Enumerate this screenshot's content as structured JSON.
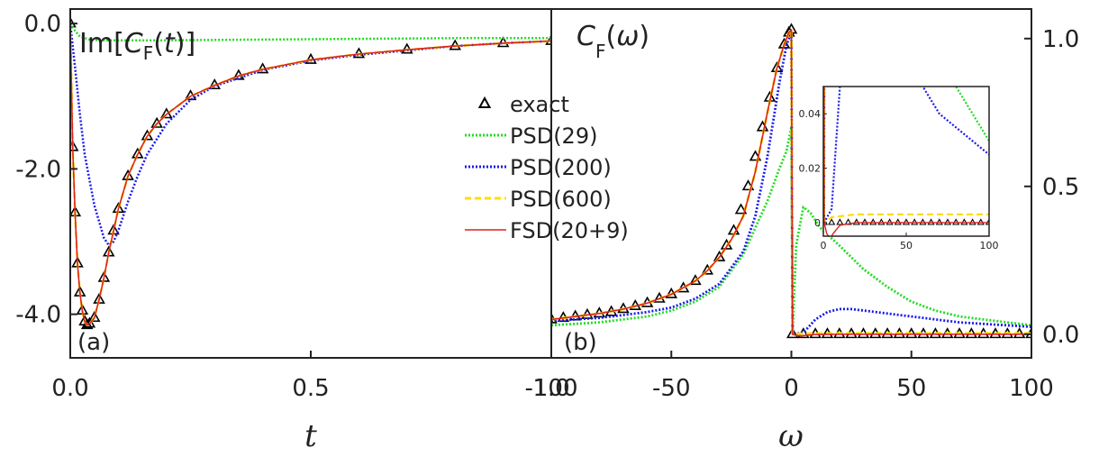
{
  "chart_data": [
    {
      "type": "line",
      "panel_label": "(a)",
      "title": "Im[C_F(t)]",
      "xlabel": "t",
      "ylabel": "",
      "xlim": [
        0.0,
        1.0
      ],
      "ylim": [
        -4.6,
        0.2
      ],
      "x_ticks": [
        "0.0",
        "0.5",
        "1.0"
      ],
      "y_ticks": [
        "0.0",
        "-2.0",
        "-4.0"
      ],
      "series": [
        {
          "name": "exact",
          "style": "triangle-markers",
          "color": "#000000",
          "x": [
            0.0,
            0.005,
            0.01,
            0.015,
            0.02,
            0.025,
            0.03,
            0.035,
            0.04,
            0.05,
            0.06,
            0.07,
            0.08,
            0.09,
            0.1,
            0.12,
            0.14,
            0.16,
            0.18,
            0.2,
            0.25,
            0.3,
            0.35,
            0.4,
            0.5,
            0.6,
            0.7,
            0.8,
            0.9,
            1.0
          ],
          "y": [
            0.0,
            -1.7,
            -2.6,
            -3.3,
            -3.7,
            -3.95,
            -4.1,
            -4.15,
            -4.13,
            -4.05,
            -3.8,
            -3.5,
            -3.15,
            -2.85,
            -2.55,
            -2.1,
            -1.8,
            -1.55,
            -1.38,
            -1.25,
            -1.0,
            -0.85,
            -0.72,
            -0.63,
            -0.5,
            -0.42,
            -0.36,
            -0.31,
            -0.27,
            -0.24
          ]
        },
        {
          "name": "PSD(29)",
          "style": "dotted",
          "color": "#22dd22",
          "x": [
            0.0,
            0.01,
            0.02,
            0.04,
            0.06,
            0.1,
            0.2,
            0.4,
            0.6,
            0.8,
            1.0
          ],
          "y": [
            0.0,
            -0.1,
            -0.18,
            -0.22,
            -0.23,
            -0.23,
            -0.23,
            -0.22,
            -0.21,
            -0.2,
            -0.2
          ]
        },
        {
          "name": "PSD(200)",
          "style": "dotted",
          "color": "#1a1aee",
          "x": [
            0.0,
            0.01,
            0.02,
            0.03,
            0.05,
            0.07,
            0.08,
            0.09,
            0.1,
            0.12,
            0.14,
            0.16,
            0.2,
            0.25,
            0.3,
            0.4,
            0.5,
            0.6,
            0.7,
            0.8,
            0.9,
            1.0
          ],
          "y": [
            0.0,
            -0.6,
            -1.25,
            -1.8,
            -2.5,
            -2.95,
            -3.05,
            -3.0,
            -2.85,
            -2.45,
            -2.1,
            -1.8,
            -1.38,
            -1.05,
            -0.86,
            -0.64,
            -0.51,
            -0.43,
            -0.37,
            -0.31,
            -0.27,
            -0.24
          ]
        },
        {
          "name": "PSD(600)",
          "style": "dashed",
          "color": "#ffdd00",
          "x": [
            0.0,
            0.005,
            0.01,
            0.015,
            0.02,
            0.025,
            0.03,
            0.035,
            0.04,
            0.05,
            0.06,
            0.07,
            0.08,
            0.09,
            0.1,
            0.12,
            0.14,
            0.16,
            0.18,
            0.2,
            0.25,
            0.3,
            0.35,
            0.4,
            0.5,
            0.6,
            0.7,
            0.8,
            0.9,
            1.0
          ],
          "y": [
            0.0,
            -1.7,
            -2.6,
            -3.3,
            -3.7,
            -3.95,
            -4.1,
            -4.15,
            -4.13,
            -4.05,
            -3.8,
            -3.5,
            -3.15,
            -2.85,
            -2.55,
            -2.1,
            -1.8,
            -1.55,
            -1.38,
            -1.25,
            -1.0,
            -0.85,
            -0.72,
            -0.63,
            -0.5,
            -0.42,
            -0.36,
            -0.31,
            -0.27,
            -0.24
          ]
        },
        {
          "name": "FSD(20+9)",
          "style": "solid",
          "color": "#dd2222",
          "x": [
            0.0,
            0.005,
            0.01,
            0.015,
            0.02,
            0.025,
            0.03,
            0.035,
            0.04,
            0.05,
            0.06,
            0.07,
            0.08,
            0.09,
            0.1,
            0.12,
            0.14,
            0.16,
            0.18,
            0.2,
            0.25,
            0.3,
            0.35,
            0.4,
            0.5,
            0.6,
            0.7,
            0.8,
            0.9,
            1.0
          ],
          "y": [
            0.0,
            -1.7,
            -2.6,
            -3.3,
            -3.7,
            -3.95,
            -4.1,
            -4.15,
            -4.13,
            -4.05,
            -3.8,
            -3.5,
            -3.15,
            -2.85,
            -2.55,
            -2.1,
            -1.8,
            -1.55,
            -1.38,
            -1.25,
            -1.0,
            -0.85,
            -0.72,
            -0.63,
            -0.5,
            -0.42,
            -0.36,
            -0.31,
            -0.27,
            -0.24
          ]
        }
      ]
    },
    {
      "type": "line",
      "panel_label": "(b)",
      "title": "C_F(ω)",
      "xlabel": "ω",
      "ylabel": "",
      "xlim": [
        -100,
        100
      ],
      "ylim": [
        -0.08,
        1.1
      ],
      "x_ticks": [
        "-100",
        "-50",
        "0",
        "50",
        "100"
      ],
      "y_ticks": [
        "0.0",
        "0.5",
        "1.0"
      ],
      "series": [
        {
          "name": "exact",
          "style": "triangle-markers",
          "color": "#000000",
          "x": [
            -100,
            -95,
            -90,
            -85,
            -80,
            -75,
            -70,
            -65,
            -60,
            -55,
            -50,
            -45,
            -40,
            -35,
            -30,
            -27,
            -24,
            -21,
            -18,
            -15,
            -12,
            -9,
            -6,
            -3,
            -1,
            0,
            0.5,
            5,
            10,
            15,
            20,
            25,
            30,
            35,
            40,
            45,
            50,
            55,
            60,
            65,
            70,
            75,
            80,
            85,
            90,
            95,
            100
          ],
          "y": [
            0.05,
            0.055,
            0.06,
            0.065,
            0.07,
            0.075,
            0.085,
            0.095,
            0.105,
            0.12,
            0.135,
            0.155,
            0.18,
            0.215,
            0.26,
            0.3,
            0.35,
            0.42,
            0.5,
            0.6,
            0.7,
            0.8,
            0.9,
            0.98,
            1.02,
            1.03,
            0.0,
            0.0,
            0.0,
            0.0,
            0.0,
            0.0,
            0.0,
            0.0,
            0.0,
            0.0,
            0.0,
            0.0,
            0.0,
            0.0,
            0.0,
            0.0,
            0.0,
            0.0,
            0.0,
            0.0,
            0.0
          ]
        },
        {
          "name": "PSD(29)",
          "style": "dotted",
          "color": "#22dd22",
          "x": [
            -100,
            -80,
            -60,
            -50,
            -40,
            -30,
            -20,
            -15,
            -10,
            -5,
            -2,
            0,
            0.5,
            2,
            5,
            8,
            12,
            20,
            30,
            40,
            50,
            60,
            70,
            80,
            90,
            100
          ],
          "y": [
            0.03,
            0.04,
            0.06,
            0.08,
            0.11,
            0.16,
            0.27,
            0.36,
            0.45,
            0.56,
            0.62,
            0.7,
            0.0,
            0.3,
            0.43,
            0.41,
            0.36,
            0.3,
            0.22,
            0.16,
            0.11,
            0.08,
            0.06,
            0.05,
            0.04,
            0.03
          ]
        },
        {
          "name": "PSD(200)",
          "style": "dotted",
          "color": "#1a1aee",
          "x": [
            -100,
            -80,
            -60,
            -50,
            -40,
            -30,
            -20,
            -15,
            -10,
            -5,
            -2,
            0,
            0.5,
            5,
            10,
            15,
            20,
            25,
            30,
            40,
            50,
            60,
            70,
            80,
            90,
            100
          ],
          "y": [
            0.045,
            0.055,
            0.075,
            0.09,
            0.12,
            0.17,
            0.28,
            0.4,
            0.6,
            0.85,
            0.98,
            1.02,
            0.0,
            0.005,
            0.05,
            0.075,
            0.085,
            0.085,
            0.08,
            0.07,
            0.06,
            0.05,
            0.04,
            0.035,
            0.03,
            0.025
          ]
        },
        {
          "name": "PSD(600)",
          "style": "dashed",
          "color": "#ffdd00",
          "x": [
            -100,
            -90,
            -80,
            -70,
            -60,
            -50,
            -40,
            -35,
            -30,
            -25,
            -20,
            -15,
            -10,
            -6,
            -3,
            -1,
            0,
            0.5,
            5,
            20,
            40,
            60,
            80,
            100
          ],
          "y": [
            0.05,
            0.06,
            0.07,
            0.085,
            0.105,
            0.135,
            0.18,
            0.215,
            0.26,
            0.32,
            0.4,
            0.55,
            0.75,
            0.9,
            0.98,
            1.02,
            1.03,
            0.0,
            0.002,
            0.003,
            0.003,
            0.003,
            0.003,
            0.003
          ]
        },
        {
          "name": "FSD(20+9)",
          "style": "solid",
          "color": "#dd2222",
          "x": [
            -100,
            -90,
            -80,
            -70,
            -60,
            -50,
            -40,
            -35,
            -30,
            -25,
            -20,
            -15,
            -10,
            -6,
            -3,
            -1,
            0,
            0.5,
            2,
            4,
            6,
            10,
            20,
            40,
            60,
            80,
            100
          ],
          "y": [
            0.05,
            0.06,
            0.07,
            0.085,
            0.105,
            0.135,
            0.18,
            0.215,
            0.26,
            0.32,
            0.4,
            0.55,
            0.75,
            0.9,
            0.98,
            1.02,
            1.03,
            0.0,
            -0.004,
            -0.006,
            -0.004,
            -0.001,
            0.0,
            0.0,
            0.0,
            0.0,
            0.0
          ]
        }
      ],
      "inset": {
        "xlim": [
          0,
          100
        ],
        "ylim": [
          -0.005,
          0.05
        ],
        "x_ticks": [
          "0",
          "50",
          "100"
        ],
        "y_ticks": [
          "0",
          "0.02",
          "0.04"
        ]
      }
    }
  ],
  "legend": {
    "entries": [
      {
        "label": "exact",
        "marker": "triangle",
        "color": "#000000"
      },
      {
        "label": "PSD(29)",
        "style": "dotted",
        "color": "#22dd22"
      },
      {
        "label": "PSD(200)",
        "style": "dotted",
        "color": "#1a1aee"
      },
      {
        "label": "PSD(600)",
        "style": "dashed",
        "color": "#ffdd00"
      },
      {
        "label": "FSD(20+9)",
        "style": "solid",
        "color": "#dd2222"
      }
    ]
  }
}
